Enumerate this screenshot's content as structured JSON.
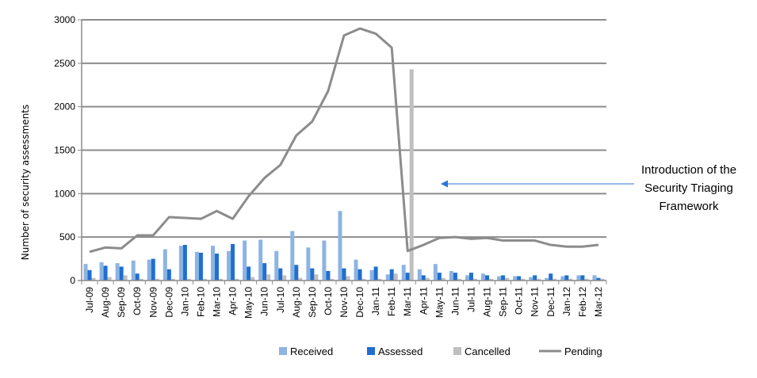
{
  "chart_data": {
    "type": "bar",
    "ylabel": "Number of security assessments",
    "ylim": [
      0,
      3000
    ],
    "yticks": [
      0,
      500,
      1000,
      1500,
      2000,
      2500,
      3000
    ],
    "grid": true,
    "legend_position": "bottom",
    "categories": [
      "Jul-09",
      "Aug-09",
      "Sep-09",
      "Oct-09",
      "Nov-09",
      "Dec-09",
      "Jan-10",
      "Feb-10",
      "Mar-10",
      "Apr-10",
      "May-10",
      "Jun-10",
      "Jul-10",
      "Aug-10",
      "Sep-10",
      "Oct-10",
      "Nov-10",
      "Dec-10",
      "Jan-11",
      "Feb-11",
      "Mar-11",
      "Apr-11",
      "May-11",
      "Jun-11",
      "Jul-11",
      "Aug-11",
      "Sep-11",
      "Oct-11",
      "Nov-11",
      "Dec-11",
      "Jan-12",
      "Feb-12",
      "Mar-12"
    ],
    "series": [
      {
        "name": "Received",
        "type": "bar",
        "color": "#8db4e2",
        "values": [
          190,
          210,
          200,
          230,
          240,
          360,
          400,
          330,
          400,
          340,
          460,
          470,
          340,
          570,
          380,
          460,
          800,
          240,
          120,
          70,
          180,
          130,
          190,
          110,
          60,
          80,
          50,
          50,
          40,
          30,
          50,
          60,
          60
        ]
      },
      {
        "name": "Assessed",
        "type": "bar",
        "color": "#1f6fd1",
        "values": [
          120,
          170,
          160,
          80,
          250,
          130,
          410,
          320,
          310,
          420,
          160,
          200,
          140,
          180,
          140,
          110,
          140,
          130,
          160,
          130,
          90,
          60,
          90,
          90,
          90,
          60,
          60,
          50,
          60,
          80,
          60,
          60,
          30
        ]
      },
      {
        "name": "Cancelled",
        "type": "bar",
        "color": "#bfbfbf",
        "values": [
          30,
          40,
          60,
          20,
          20,
          20,
          20,
          20,
          20,
          20,
          40,
          70,
          60,
          30,
          70,
          20,
          50,
          20,
          20,
          80,
          2430,
          30,
          30,
          20,
          20,
          20,
          30,
          20,
          20,
          20,
          20,
          20,
          20
        ]
      },
      {
        "name": "Pending",
        "type": "line",
        "color": "#8c8c8c",
        "values": [
          330,
          380,
          370,
          520,
          520,
          730,
          720,
          710,
          800,
          710,
          970,
          1180,
          1330,
          1670,
          1830,
          2180,
          2820,
          2900,
          2840,
          2680,
          340,
          410,
          490,
          500,
          480,
          490,
          460,
          460,
          460,
          410,
          390,
          390,
          410
        ]
      }
    ],
    "annotation": {
      "lines": [
        "Introduction of the",
        "Security Triaging",
        "Framework"
      ],
      "color": "#2e75d6"
    }
  }
}
